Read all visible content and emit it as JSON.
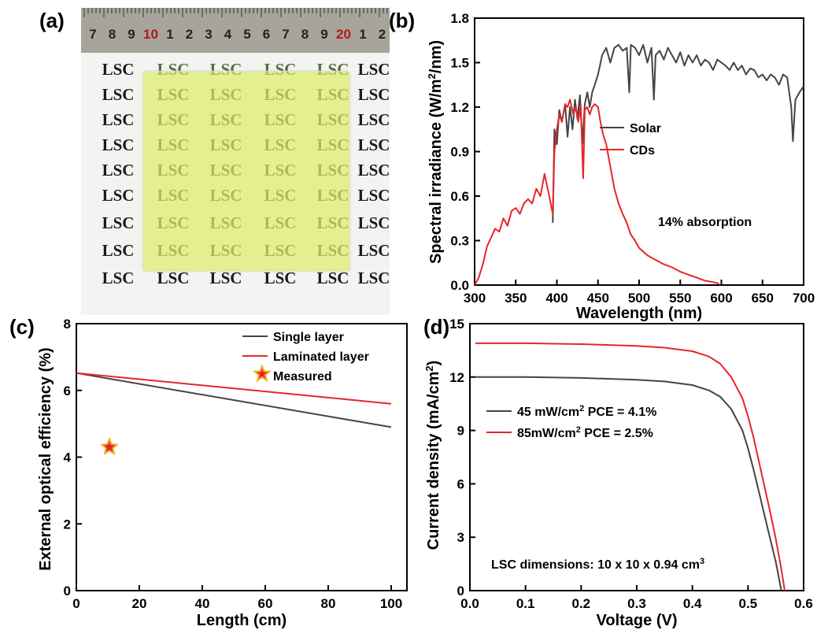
{
  "panel_labels": [
    "(a)",
    "(b)",
    "(c)",
    "(d)"
  ],
  "photo": {
    "ruler_numbers": [
      "7",
      "8",
      "9",
      "10",
      "1",
      "2",
      "3",
      "4",
      "5",
      "6",
      "7",
      "8",
      "9",
      "20",
      "1",
      "2"
    ],
    "red_numbers": [
      "10",
      "20"
    ],
    "tile_text": "LSC"
  },
  "chart_data": [
    {
      "panel": "(b)",
      "type": "line",
      "xlabel": "Wavelength (nm)",
      "ylabel": "Spectral irradiance (W/m²/nm)",
      "xlim": [
        300,
        700
      ],
      "ylim": [
        0,
        1.8
      ],
      "xticks": [
        "300",
        "350",
        "400",
        "450",
        "500",
        "550",
        "600",
        "650",
        "700"
      ],
      "yticks": [
        "0.0",
        "0.3",
        "0.6",
        "0.9",
        "1.2",
        "1.5",
        "1.8"
      ],
      "legend_position": "right",
      "annotation": "14% absorption",
      "series": [
        {
          "name": "Solar",
          "color": "#444444",
          "x": [
            395,
            397,
            400,
            403,
            406,
            410,
            413,
            416,
            419,
            422,
            425,
            428,
            431,
            434,
            437,
            440,
            443,
            446,
            450,
            455,
            460,
            465,
            470,
            475,
            480,
            485,
            488,
            490,
            495,
            500,
            505,
            510,
            515,
            518,
            520,
            525,
            530,
            535,
            540,
            545,
            550,
            555,
            560,
            565,
            570,
            575,
            580,
            585,
            590,
            595,
            600,
            605,
            610,
            615,
            620,
            625,
            630,
            635,
            640,
            645,
            650,
            655,
            660,
            665,
            670,
            675,
            680,
            685,
            687,
            690,
            695,
            700
          ],
          "y": [
            0.42,
            1.05,
            0.95,
            1.18,
            1.1,
            1.22,
            1.0,
            1.2,
            1.05,
            1.25,
            1.12,
            1.28,
            0.95,
            1.22,
            1.3,
            1.2,
            1.3,
            1.35,
            1.42,
            1.55,
            1.6,
            1.5,
            1.6,
            1.62,
            1.58,
            1.6,
            1.3,
            1.62,
            1.6,
            1.55,
            1.62,
            1.5,
            1.6,
            1.25,
            1.55,
            1.58,
            1.52,
            1.6,
            1.55,
            1.5,
            1.57,
            1.48,
            1.55,
            1.5,
            1.55,
            1.48,
            1.52,
            1.5,
            1.45,
            1.52,
            1.5,
            1.48,
            1.45,
            1.5,
            1.45,
            1.48,
            1.42,
            1.46,
            1.45,
            1.4,
            1.42,
            1.38,
            1.42,
            1.4,
            1.35,
            1.42,
            1.4,
            1.2,
            0.97,
            1.25,
            1.3,
            1.34
          ]
        },
        {
          "name": "CDs",
          "color": "#e8252a",
          "x": [
            300,
            305,
            310,
            315,
            320,
            325,
            330,
            335,
            340,
            345,
            350,
            355,
            360,
            365,
            370,
            375,
            380,
            385,
            390,
            395,
            397,
            400,
            403,
            406,
            410,
            413,
            416,
            420,
            423,
            426,
            429,
            432,
            434,
            437,
            440,
            443,
            446,
            450,
            453,
            456,
            460,
            465,
            470,
            475,
            480,
            485,
            490,
            495,
            500,
            510,
            520,
            530,
            540,
            550,
            560,
            570,
            580,
            590,
            597
          ],
          "y": [
            0.0,
            0.05,
            0.14,
            0.26,
            0.32,
            0.38,
            0.36,
            0.45,
            0.4,
            0.5,
            0.52,
            0.48,
            0.55,
            0.58,
            0.55,
            0.65,
            0.6,
            0.75,
            0.62,
            0.48,
            0.9,
            1.05,
            1.15,
            1.1,
            1.22,
            1.2,
            1.25,
            1.15,
            1.2,
            1.1,
            1.22,
            0.72,
            1.18,
            1.2,
            1.15,
            1.2,
            1.22,
            1.2,
            1.1,
            1.02,
            0.95,
            0.8,
            0.65,
            0.55,
            0.48,
            0.42,
            0.34,
            0.3,
            0.25,
            0.2,
            0.17,
            0.14,
            0.12,
            0.09,
            0.07,
            0.05,
            0.03,
            0.02,
            0.01
          ]
        }
      ]
    },
    {
      "panel": "(c)",
      "type": "line",
      "xlabel": "Length (cm)",
      "ylabel": "External optical efficiency (%)",
      "xlim": [
        0,
        105
      ],
      "ylim": [
        0,
        8
      ],
      "xticks": [
        "0",
        "20",
        "40",
        "60",
        "80",
        "100"
      ],
      "yticks": [
        "0",
        "2",
        "4",
        "6",
        "8"
      ],
      "legend_position": "top-right",
      "series": [
        {
          "name": "Single layer",
          "color": "#444444",
          "x": [
            0,
            100
          ],
          "y": [
            6.52,
            4.9
          ]
        },
        {
          "name": "Laminated layer",
          "color": "#e8252a",
          "x": [
            0,
            100
          ],
          "y": [
            6.52,
            5.6
          ]
        },
        {
          "name": "Measured",
          "color": "#e8252a",
          "marker": "star",
          "x": [
            10.5
          ],
          "y": [
            4.3
          ]
        }
      ]
    },
    {
      "panel": "(d)",
      "type": "line",
      "xlabel": "Voltage (V)",
      "ylabel": "Current density (mA/cm²)",
      "xlim": [
        0,
        0.6
      ],
      "ylim": [
        0,
        15
      ],
      "xticks": [
        "0.0",
        "0.1",
        "0.2",
        "0.3",
        "0.4",
        "0.5",
        "0.6"
      ],
      "yticks": [
        "0",
        "3",
        "6",
        "9",
        "12",
        "15"
      ],
      "legend_position": "middle-left",
      "annotation": "LSC dimensions: 10 x 10 x 0.94 cm³",
      "series": [
        {
          "name": "45 mW/cm²  PCE = 4.1%",
          "color": "#444444",
          "x": [
            0.01,
            0.1,
            0.2,
            0.3,
            0.35,
            0.4,
            0.43,
            0.45,
            0.47,
            0.49,
            0.5,
            0.51,
            0.52,
            0.53,
            0.54,
            0.55,
            0.555,
            0.56
          ],
          "y": [
            12.0,
            12.0,
            11.95,
            11.85,
            11.75,
            11.55,
            11.25,
            10.9,
            10.2,
            9.0,
            8.0,
            6.8,
            5.5,
            4.2,
            2.9,
            1.6,
            0.8,
            0.0
          ]
        },
        {
          "name": "85mW/cm²  PCE = 2.5%",
          "color": "#e8252a",
          "x": [
            0.01,
            0.1,
            0.2,
            0.3,
            0.35,
            0.4,
            0.43,
            0.45,
            0.47,
            0.49,
            0.5,
            0.51,
            0.52,
            0.53,
            0.54,
            0.55,
            0.56,
            0.566
          ],
          "y": [
            13.9,
            13.9,
            13.85,
            13.75,
            13.65,
            13.45,
            13.15,
            12.75,
            12.0,
            10.8,
            9.8,
            8.6,
            7.2,
            5.8,
            4.4,
            2.9,
            1.2,
            0.0
          ]
        }
      ]
    }
  ]
}
